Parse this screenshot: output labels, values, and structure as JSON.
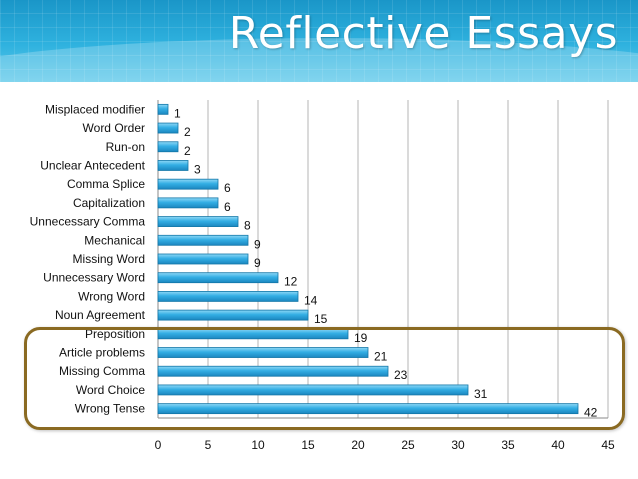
{
  "title": "Reflective Essays",
  "colors": {
    "bar": "#29a6e0",
    "bar_border": "#1377a8",
    "highlight": "#8a6a22",
    "banner": "#2aaad8"
  },
  "chart_data": {
    "type": "bar",
    "orientation": "horizontal",
    "title": "Reflective Essays",
    "categories": [
      "Misplaced modifier",
      "Word Order",
      "Run-on",
      "Unclear Antecedent",
      "Comma Splice",
      "Capitalization",
      "Unnecessary Comma",
      "Mechanical",
      "Missing Word",
      "Unnecessary Word",
      "Wrong Word",
      "Noun Agreement",
      "Preposition",
      "Article problems",
      "Missing Comma",
      "Word Choice",
      "Wrong Tense"
    ],
    "values": [
      1,
      2,
      2,
      3,
      6,
      6,
      8,
      9,
      9,
      12,
      14,
      15,
      19,
      21,
      23,
      31,
      42
    ],
    "xlim": [
      0,
      45
    ],
    "xticks": [
      0,
      5,
      10,
      15,
      20,
      25,
      30,
      35,
      40,
      45
    ],
    "grid": true,
    "highlighted_categories": [
      "Preposition",
      "Article problems",
      "Missing Comma",
      "Word Choice",
      "Wrong Tense"
    ]
  }
}
